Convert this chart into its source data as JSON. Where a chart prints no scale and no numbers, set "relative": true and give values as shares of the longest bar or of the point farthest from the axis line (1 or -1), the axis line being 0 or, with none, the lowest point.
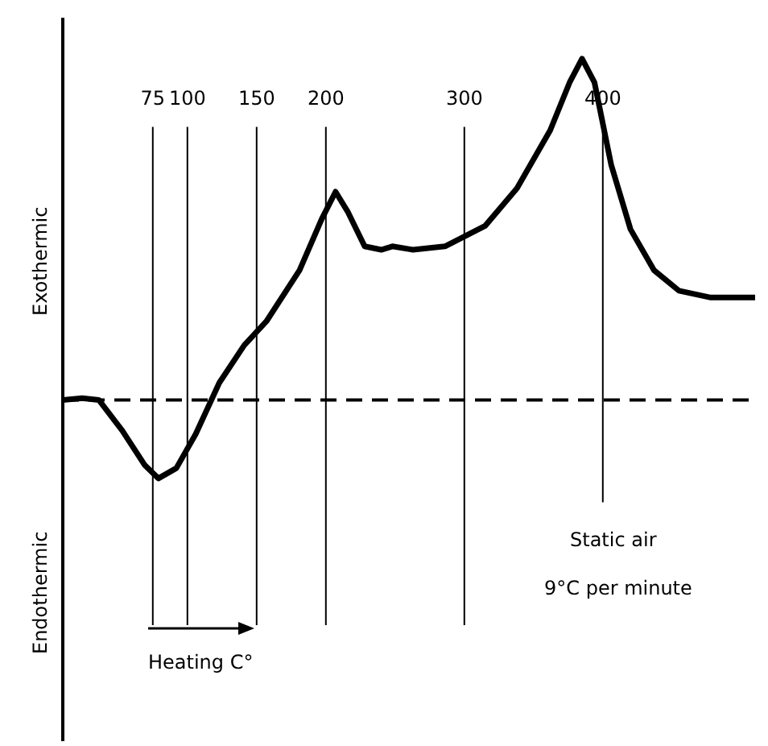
{
  "chart_data": {
    "type": "line",
    "relative": true,
    "color": "#000000",
    "xlim": [
      10,
      510
    ],
    "xticks": [
      75,
      100,
      150,
      200,
      300,
      400
    ],
    "tick_labels": "x",
    "grid": "x",
    "ref_lines": [
      {
        "axis": "y",
        "value": 0,
        "line_style": "dashed"
      }
    ],
    "legend": false,
    "marker": "none",
    "line_style": "solid",
    "x": [
      10,
      24,
      36,
      53,
      69,
      79,
      92,
      106,
      123,
      141,
      157,
      181,
      197,
      207,
      216,
      228,
      240,
      248,
      263,
      286,
      315,
      338,
      362,
      376,
      385,
      394,
      406,
      420,
      437,
      455,
      478,
      501,
      510
    ],
    "values": [
      0,
      0.005,
      0,
      -0.09,
      -0.19,
      -0.23,
      -0.2,
      -0.1,
      0.05,
      0.16,
      0.23,
      0.38,
      0.53,
      0.61,
      0.55,
      0.45,
      0.44,
      0.45,
      0.44,
      0.45,
      0.51,
      0.62,
      0.79,
      0.93,
      1,
      0.93,
      0.69,
      0.5,
      0.38,
      0.32,
      0.3,
      0.3,
      0.3
    ],
    "annotations": [
      "Exothermic",
      "Endothermic",
      "Static air",
      "9°C per minute",
      "Heating C°"
    ]
  }
}
